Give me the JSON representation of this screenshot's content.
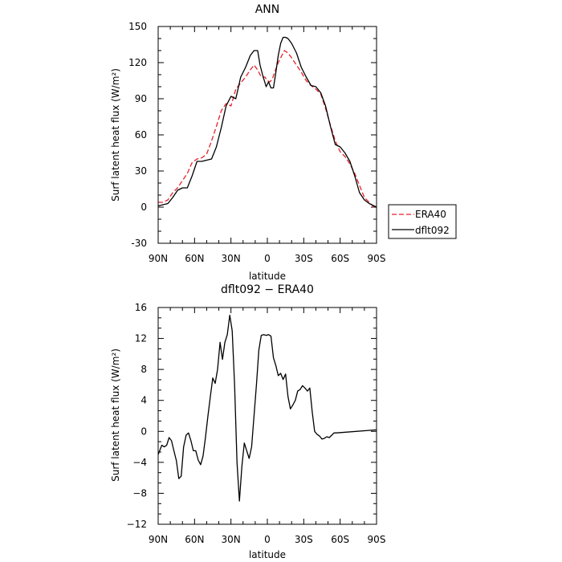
{
  "chart_data": [
    {
      "type": "line",
      "title": "ANN",
      "xlabel": "latitude",
      "ylabel": "Surf latent heat flux (W/m²)",
      "xlim": [
        90,
        -90
      ],
      "ylim": [
        -30,
        150
      ],
      "xticks": [
        {
          "value": 90,
          "label": "90N"
        },
        {
          "value": 60,
          "label": "60N"
        },
        {
          "value": 30,
          "label": "30N"
        },
        {
          "value": 0,
          "label": "0"
        },
        {
          "value": -30,
          "label": "30S"
        },
        {
          "value": -60,
          "label": "60S"
        },
        {
          "value": -90,
          "label": "90S"
        }
      ],
      "yticks": [
        {
          "value": -30,
          "label": "-30"
        },
        {
          "value": 0,
          "label": "0"
        },
        {
          "value": 30,
          "label": "30"
        },
        {
          "value": 60,
          "label": "60"
        },
        {
          "value": 90,
          "label": "90"
        },
        {
          "value": 120,
          "label": "120"
        },
        {
          "value": 150,
          "label": "150"
        }
      ],
      "legend_position": "right",
      "series": [
        {
          "name": "ERA40",
          "color": "#e8202a",
          "dash": "dashed",
          "points": [
            [
              90,
              4
            ],
            [
              86,
              4
            ],
            [
              82,
              6
            ],
            [
              78,
              12
            ],
            [
              74,
              16
            ],
            [
              70,
              22
            ],
            [
              66,
              28
            ],
            [
              62,
              37
            ],
            [
              58,
              40
            ],
            [
              54,
              41
            ],
            [
              50,
              44
            ],
            [
              46,
              55
            ],
            [
              42,
              67
            ],
            [
              38,
              80
            ],
            [
              34,
              86
            ],
            [
              30,
              84
            ],
            [
              26,
              98
            ],
            [
              22,
              103
            ],
            [
              18,
              108
            ],
            [
              14,
              114
            ],
            [
              11,
              118
            ],
            [
              8,
              114
            ],
            [
              5,
              108
            ],
            [
              2,
              108
            ],
            [
              0,
              105
            ],
            [
              -2,
              104
            ],
            [
              -4,
              106
            ],
            [
              -6,
              112
            ],
            [
              -9,
              120
            ],
            [
              -12,
              126
            ],
            [
              -14,
              130
            ],
            [
              -17,
              128
            ],
            [
              -20,
              124
            ],
            [
              -24,
              118
            ],
            [
              -28,
              112
            ],
            [
              -32,
              105
            ],
            [
              -36,
              101
            ],
            [
              -40,
              98
            ],
            [
              -44,
              94
            ],
            [
              -48,
              82
            ],
            [
              -52,
              68
            ],
            [
              -56,
              55
            ],
            [
              -60,
              46
            ],
            [
              -64,
              42
            ],
            [
              -68,
              36
            ],
            [
              -72,
              28
            ],
            [
              -76,
              18
            ],
            [
              -80,
              8
            ],
            [
              -84,
              4
            ],
            [
              -88,
              0
            ],
            [
              -90,
              0
            ]
          ]
        },
        {
          "name": "dflt092",
          "color": "#000000",
          "dash": "solid",
          "points": [
            [
              90,
              1
            ],
            [
              86,
              2
            ],
            [
              82,
              3
            ],
            [
              78,
              8
            ],
            [
              74,
              14
            ],
            [
              70,
              16
            ],
            [
              66,
              16
            ],
            [
              62,
              26
            ],
            [
              58,
              38
            ],
            [
              54,
              38
            ],
            [
              50,
              39
            ],
            [
              46,
              40
            ],
            [
              42,
              50
            ],
            [
              38,
              66
            ],
            [
              34,
              84
            ],
            [
              30,
              92
            ],
            [
              26,
              90
            ],
            [
              22,
              108
            ],
            [
              18,
              116
            ],
            [
              14,
              126
            ],
            [
              11,
              130
            ],
            [
              8,
              130
            ],
            [
              6,
              118
            ],
            [
              4,
              110
            ],
            [
              1,
              100
            ],
            [
              -1,
              104
            ],
            [
              -3,
              99
            ],
            [
              -5,
              99
            ],
            [
              -7,
              112
            ],
            [
              -9,
              126
            ],
            [
              -11,
              136
            ],
            [
              -13,
              141
            ],
            [
              -15,
              141
            ],
            [
              -17,
              140
            ],
            [
              -20,
              136
            ],
            [
              -24,
              128
            ],
            [
              -28,
              116
            ],
            [
              -32,
              108
            ],
            [
              -36,
              101
            ],
            [
              -40,
              100
            ],
            [
              -44,
              95
            ],
            [
              -48,
              84
            ],
            [
              -52,
              67
            ],
            [
              -56,
              52
            ],
            [
              -60,
              50
            ],
            [
              -64,
              45
            ],
            [
              -68,
              38
            ],
            [
              -72,
              26
            ],
            [
              -76,
              12
            ],
            [
              -80,
              6
            ],
            [
              -84,
              3
            ],
            [
              -88,
              1
            ],
            [
              -90,
              0
            ]
          ]
        }
      ]
    },
    {
      "type": "line",
      "title": "dflt092 − ERA40",
      "xlabel": "latitude",
      "ylabel": "Surf latent heat flux (W/m²)",
      "xlim": [
        90,
        -90
      ],
      "ylim": [
        -12,
        16
      ],
      "xticks": [
        {
          "value": 90,
          "label": "90N"
        },
        {
          "value": 60,
          "label": "60N"
        },
        {
          "value": 30,
          "label": "30N"
        },
        {
          "value": 0,
          "label": "0"
        },
        {
          "value": -30,
          "label": "30S"
        },
        {
          "value": -60,
          "label": "60S"
        },
        {
          "value": -90,
          "label": "90S"
        }
      ],
      "yticks": [
        {
          "value": -12,
          "label": "−12"
        },
        {
          "value": -8,
          "label": "−8"
        },
        {
          "value": -4,
          "label": "−4"
        },
        {
          "value": 0,
          "label": "0"
        },
        {
          "value": 4,
          "label": "4"
        },
        {
          "value": 8,
          "label": "8"
        },
        {
          "value": 12,
          "label": "12"
        },
        {
          "value": 16,
          "label": "16"
        }
      ],
      "series": [
        {
          "color": "#000000",
          "dash": "solid",
          "points": [
            [
              90,
              -3.0
            ],
            [
              87,
              -1.8
            ],
            [
              85,
              -2.0
            ],
            [
              83,
              -1.8
            ],
            [
              81,
              -0.8
            ],
            [
              79,
              -1.2
            ],
            [
              77,
              -2.5
            ],
            [
              75,
              -3.8
            ],
            [
              73,
              -6.1
            ],
            [
              71,
              -5.8
            ],
            [
              69,
              -2.0
            ],
            [
              67,
              -0.5
            ],
            [
              65,
              -0.2
            ],
            [
              63,
              -1.2
            ],
            [
              61,
              -2.5
            ],
            [
              59,
              -2.5
            ],
            [
              57,
              -3.7
            ],
            [
              55,
              -4.3
            ],
            [
              53,
              -3.2
            ],
            [
              51,
              -0.8
            ],
            [
              49,
              2.0
            ],
            [
              47,
              4.5
            ],
            [
              45,
              6.9
            ],
            [
              43,
              6.2
            ],
            [
              41,
              8.0
            ],
            [
              39,
              11.5
            ],
            [
              37,
              9.3
            ],
            [
              35,
              11.5
            ],
            [
              33,
              12.5
            ],
            [
              31,
              15.0
            ],
            [
              29,
              13.0
            ],
            [
              27,
              6.0
            ],
            [
              25,
              -4.0
            ],
            [
              23,
              -9.0
            ],
            [
              21,
              -4.5
            ],
            [
              19,
              -1.5
            ],
            [
              17,
              -2.5
            ],
            [
              15,
              -3.5
            ],
            [
              13,
              -2.0
            ],
            [
              11,
              2.0
            ],
            [
              9,
              6.0
            ],
            [
              7,
              10.5
            ],
            [
              5,
              12.4
            ],
            [
              3,
              12.5
            ],
            [
              1,
              12.4
            ],
            [
              -1,
              12.5
            ],
            [
              -3,
              12.3
            ],
            [
              -5,
              9.5
            ],
            [
              -7,
              8.5
            ],
            [
              -9,
              7.2
            ],
            [
              -11,
              7.5
            ],
            [
              -13,
              6.7
            ],
            [
              -15,
              7.4
            ],
            [
              -17,
              4.5
            ],
            [
              -19,
              2.9
            ],
            [
              -21,
              3.4
            ],
            [
              -23,
              4.0
            ],
            [
              -25,
              5.2
            ],
            [
              -27,
              5.4
            ],
            [
              -29,
              5.9
            ],
            [
              -31,
              5.6
            ],
            [
              -33,
              5.2
            ],
            [
              -35,
              5.6
            ],
            [
              -37,
              2.5
            ],
            [
              -39,
              0.0
            ],
            [
              -41,
              -0.4
            ],
            [
              -43,
              -0.6
            ],
            [
              -45,
              -1.0
            ],
            [
              -47,
              -0.9
            ],
            [
              -49,
              -0.7
            ],
            [
              -51,
              -0.8
            ],
            [
              -53,
              -0.5
            ],
            [
              -55,
              -0.2
            ],
            [
              -57,
              -0.2
            ],
            [
              -90,
              0.2
            ]
          ]
        }
      ]
    }
  ]
}
